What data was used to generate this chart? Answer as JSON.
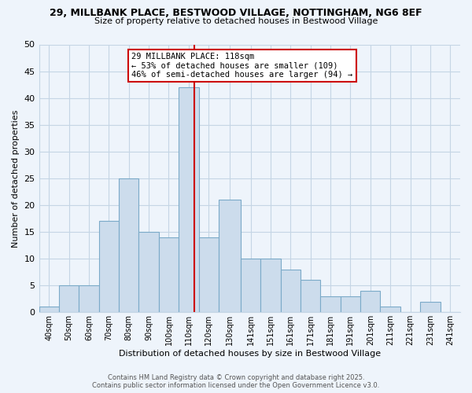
{
  "title_line1": "29, MILLBANK PLACE, BESTWOOD VILLAGE, NOTTINGHAM, NG6 8EF",
  "title_line2": "Size of property relative to detached houses in Bestwood Village",
  "xlabel": "Distribution of detached houses by size in Bestwood Village",
  "ylabel": "Number of detached properties",
  "bar_labels": [
    "40sqm",
    "50sqm",
    "60sqm",
    "70sqm",
    "80sqm",
    "90sqm",
    "100sqm",
    "110sqm",
    "120sqm",
    "130sqm",
    "141sqm",
    "151sqm",
    "161sqm",
    "171sqm",
    "181sqm",
    "191sqm",
    "201sqm",
    "211sqm",
    "221sqm",
    "231sqm",
    "241sqm"
  ],
  "bar_values": [
    1,
    5,
    5,
    17,
    25,
    15,
    14,
    42,
    14,
    21,
    10,
    10,
    8,
    6,
    3,
    3,
    4,
    1,
    0,
    2,
    0
  ],
  "bar_color": "#ccdcec",
  "bar_edge_color": "#7baac8",
  "reference_line_x": 118,
  "bin_edges": [
    40,
    50,
    60,
    70,
    80,
    90,
    100,
    110,
    120,
    130,
    141,
    151,
    161,
    171,
    181,
    191,
    201,
    211,
    221,
    231,
    241,
    251
  ],
  "annotation_title": "29 MILLBANK PLACE: 118sqm",
  "annotation_line1": "← 53% of detached houses are smaller (109)",
  "annotation_line2": "46% of semi-detached houses are larger (94) →",
  "annotation_box_color": "#ffffff",
  "annotation_box_edge": "#cc0000",
  "reference_line_color": "#cc0000",
  "ylim": [
    0,
    50
  ],
  "yticks": [
    0,
    5,
    10,
    15,
    20,
    25,
    30,
    35,
    40,
    45,
    50
  ],
  "background_color": "#eef4fb",
  "plot_bg_color": "#eef4fb",
  "grid_color": "#c5d5e5",
  "footer_line1": "Contains HM Land Registry data © Crown copyright and database right 2025.",
  "footer_line2": "Contains public sector information licensed under the Open Government Licence v3.0."
}
